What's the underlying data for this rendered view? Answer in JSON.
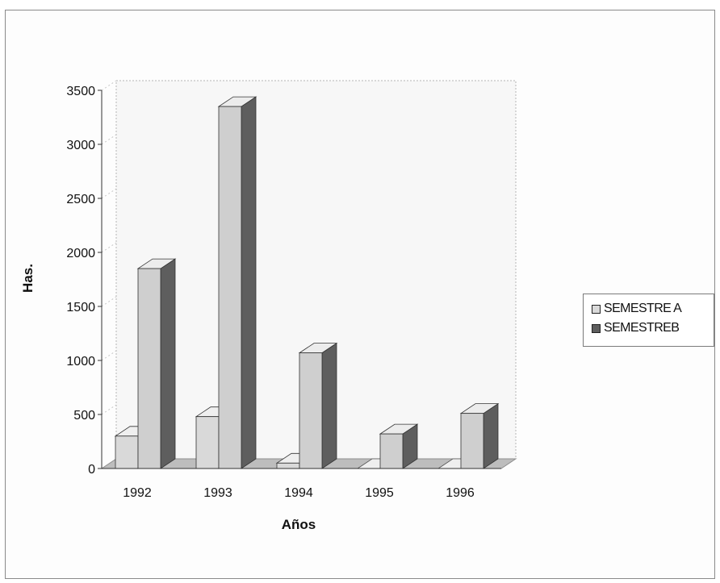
{
  "chart_data": {
    "type": "bar",
    "categories": [
      "1992",
      "1993",
      "1994",
      "1995",
      "1996"
    ],
    "series": [
      {
        "name": "SEMESTRE A",
        "values": [
          300,
          480,
          50,
          0,
          0
        ]
      },
      {
        "name": "SEMESTREB",
        "values": [
          1850,
          3350,
          1070,
          320,
          510
        ]
      }
    ],
    "xlabel": "Años",
    "ylabel": "Has.",
    "ylim": [
      0,
      3500
    ],
    "yticks": [
      0,
      500,
      1000,
      1500,
      2000,
      2500,
      3000,
      3500
    ],
    "legend_position": "right",
    "colors": {
      "series_a_face": "#d9d9d9",
      "series_a_side": "#a9a9a9",
      "series_a_top": "#efefef",
      "series_b_face": "#cfcfcf",
      "series_b_side": "#5e5e5e",
      "series_b_top": "#ececec",
      "floor": "#bdbdbd",
      "wall": "#f7f7f7",
      "grid": "#c8c8c8"
    }
  }
}
